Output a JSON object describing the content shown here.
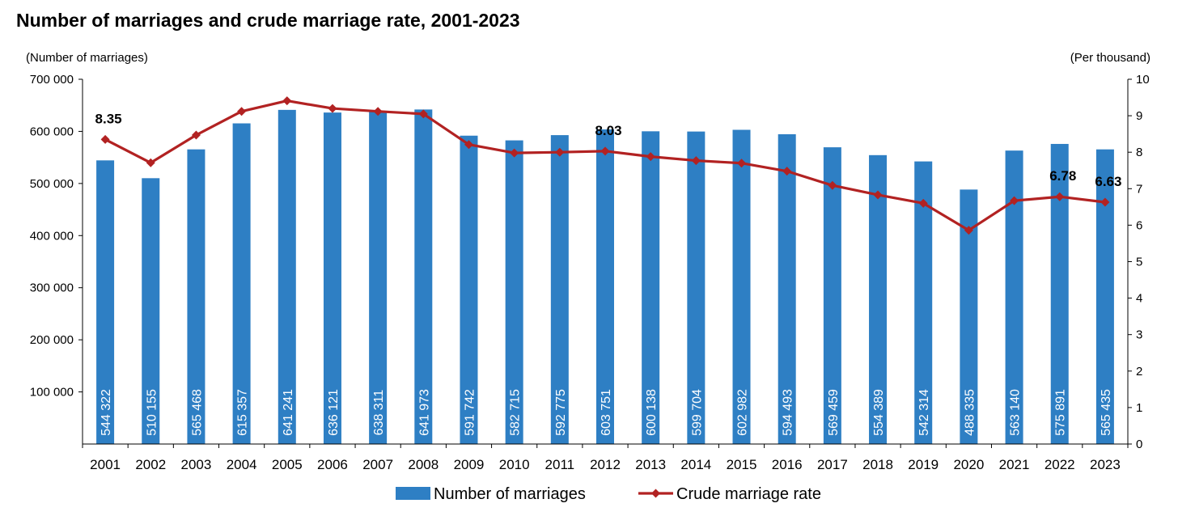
{
  "page": {
    "title": "Number of marriages and crude marriage rate, 2001-2023",
    "left_unit": "(Number of marriages)",
    "right_unit": "(Per thousand)"
  },
  "colors": {
    "bar": "#2e7fc4",
    "line": "#b22222",
    "axis": "#000000"
  },
  "chart_data": {
    "type": "bar",
    "title": "Number of marriages and crude marriage rate, 2001-2023",
    "categories": [
      "2001",
      "2002",
      "2003",
      "2004",
      "2005",
      "2006",
      "2007",
      "2008",
      "2009",
      "2010",
      "2011",
      "2012",
      "2013",
      "2014",
      "2015",
      "2016",
      "2017",
      "2018",
      "2019",
      "2020",
      "2021",
      "2022",
      "2023"
    ],
    "series": [
      {
        "name": "Number of marriages",
        "type": "bar",
        "axis": "left",
        "values": [
          544322,
          510155,
          565468,
          615357,
          641241,
          636121,
          638311,
          641973,
          591742,
          582715,
          592775,
          603751,
          600138,
          599704,
          602982,
          594493,
          569459,
          554389,
          542314,
          488335,
          563140,
          575891,
          565435
        ],
        "labels": [
          "544 322",
          "510 155",
          "565 468",
          "615 357",
          "641 241",
          "636 121",
          "638 311",
          "641 973",
          "591 742",
          "582 715",
          "592 775",
          "603 751",
          "600 138",
          "599 704",
          "602 982",
          "594 493",
          "569 459",
          "554 389",
          "542 314",
          "488 335",
          "563 140",
          "575 891",
          "565 435"
        ]
      },
      {
        "name": "Crude marriage rate",
        "type": "line",
        "axis": "right",
        "values": [
          8.35,
          7.71,
          8.47,
          9.12,
          9.41,
          9.2,
          9.12,
          9.05,
          8.21,
          7.98,
          8.0,
          8.03,
          7.88,
          7.77,
          7.7,
          7.48,
          7.09,
          6.83,
          6.6,
          5.86,
          6.67,
          6.78,
          6.63
        ],
        "data_labels": [
          {
            "index": 0,
            "text": "8.35"
          },
          {
            "index": 11,
            "text": "8.03"
          },
          {
            "index": 21,
            "text": "6.78"
          },
          {
            "index": 22,
            "text": "6.63"
          }
        ]
      }
    ],
    "y_left": {
      "ylim": [
        0,
        700000
      ],
      "ticks": [
        100000,
        200000,
        300000,
        400000,
        500000,
        600000,
        700000
      ],
      "tick_labels": [
        "100 000",
        "200 000",
        "300 000",
        "400 000",
        "500 000",
        "600 000",
        "700 000"
      ]
    },
    "y_right": {
      "ylim": [
        0,
        10
      ],
      "ticks": [
        0,
        1,
        2,
        3,
        4,
        5,
        6,
        7,
        8,
        9,
        10
      ],
      "tick_labels": [
        "0",
        "1",
        "2",
        "3",
        "4",
        "5",
        "6",
        "7",
        "8",
        "9",
        "10"
      ]
    },
    "xlabel": "",
    "grid": false,
    "legend": "bottom"
  }
}
